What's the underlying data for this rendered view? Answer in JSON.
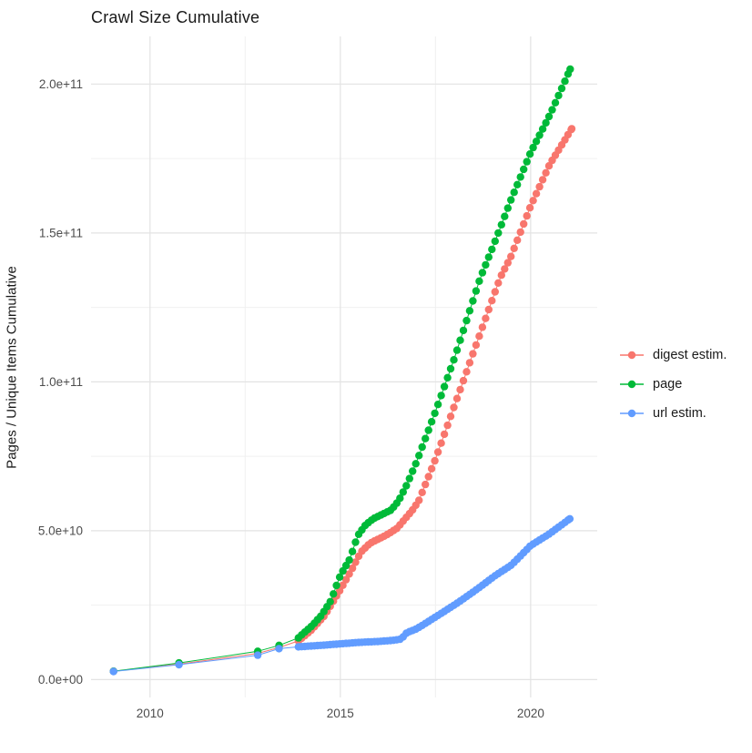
{
  "chart_data": {
    "type": "line",
    "title": "Crawl Size Cumulative",
    "xlabel": "",
    "ylabel": "Pages / Unique Items Cumulative",
    "legend_position": "right",
    "grid": true,
    "xlim": [
      2008.45,
      2021.75
    ],
    "ylim": [
      -6000000000.0,
      216000000000.0
    ],
    "x_ticks": [
      {
        "value": 2010,
        "label": "2010"
      },
      {
        "value": 2015,
        "label": "2015"
      },
      {
        "value": 2020,
        "label": "2020"
      }
    ],
    "x_minor": [
      2012.5,
      2017.5
    ],
    "y_ticks": [
      {
        "value": 0,
        "label": "0.0e+00"
      },
      {
        "value": 50000000000.0,
        "label": "5.0e+10"
      },
      {
        "value": 100000000000.0,
        "label": "1.0e+11"
      },
      {
        "value": 150000000000.0,
        "label": "1.5e+11"
      },
      {
        "value": 200000000000.0,
        "label": "2.0e+11"
      }
    ],
    "y_minor": [
      25000000000.0,
      75000000000.0,
      125000000000.0,
      175000000000.0
    ],
    "sampling_note": "crawls roughly monthly from late 2013 onward; sparse single crawls before",
    "dense_sampling": {
      "from": 2013.9,
      "step_years": 0.08333
    },
    "point_radius": 4.2,
    "series": [
      {
        "name": "digest estim.",
        "color": "#F8766D",
        "points": [
          [
            2009.04,
            2800000000.0
          ],
          [
            2010.76,
            5200000000.0
          ],
          [
            2012.83,
            8800000000.0
          ],
          [
            2013.39,
            10800000000.0
          ],
          [
            2013.9,
            13000000000.0
          ],
          [
            2014.22,
            16400000000.0
          ],
          [
            2014.58,
            21400000000.0
          ],
          [
            2015.02,
            30600000000.0
          ],
          [
            2015.3,
            37000000000.0
          ],
          [
            2015.54,
            42800000000.0
          ],
          [
            2015.78,
            45800000000.0
          ],
          [
            2016.02,
            47300000000.0
          ],
          [
            2016.26,
            48900000000.0
          ],
          [
            2016.5,
            50900000000.0
          ],
          [
            2016.7,
            54000000000.0
          ],
          [
            2016.9,
            57000000000.0
          ],
          [
            2017.06,
            60000000000.0
          ],
          [
            2017.5,
            74000000000.0
          ],
          [
            2018.0,
            92000000000.0
          ],
          [
            2018.5,
            110000000000.0
          ],
          [
            2019.2,
            135000000000.0
          ],
          [
            2019.48,
            142000000000.0
          ],
          [
            2020.0,
            159000000000.0
          ],
          [
            2020.5,
            173000000000.0
          ],
          [
            2021.08,
            185000000000.0
          ]
        ]
      },
      {
        "name": "page",
        "color": "#00BA38",
        "points": [
          [
            2009.04,
            2800000000.0
          ],
          [
            2010.76,
            5600000000.0
          ],
          [
            2012.83,
            9500000000.0
          ],
          [
            2013.39,
            11500000000.0
          ],
          [
            2013.9,
            14000000000.0
          ],
          [
            2014.0,
            15200000000.0
          ],
          [
            2014.25,
            18000000000.0
          ],
          [
            2014.5,
            21500000000.0
          ],
          [
            2014.75,
            26500000000.0
          ],
          [
            2015.0,
            35000000000.0
          ],
          [
            2015.25,
            40500000000.0
          ],
          [
            2015.46,
            48400000000.0
          ],
          [
            2015.66,
            51900000000.0
          ],
          [
            2015.86,
            54000000000.0
          ],
          [
            2016.1,
            55500000000.0
          ],
          [
            2016.34,
            57000000000.0
          ],
          [
            2016.53,
            60000000000.0
          ],
          [
            2016.75,
            65500000000.0
          ],
          [
            2017.0,
            73000000000.0
          ],
          [
            2017.5,
            90000000000.0
          ],
          [
            2018.0,
            108000000000.0
          ],
          [
            2018.68,
            135000000000.0
          ],
          [
            2019.0,
            145000000000.0
          ],
          [
            2019.48,
            161000000000.0
          ],
          [
            2020.0,
            177000000000.0
          ],
          [
            2020.52,
            190000000000.0
          ],
          [
            2021.04,
            205000000000.0
          ]
        ]
      },
      {
        "name": "url estim.",
        "color": "#619CFF",
        "points": [
          [
            2009.04,
            2700000000.0
          ],
          [
            2010.76,
            5000000000.0
          ],
          [
            2012.83,
            8200000000.0
          ],
          [
            2013.39,
            10400000000.0
          ],
          [
            2013.9,
            11000000000.0
          ],
          [
            2014.5,
            11500000000.0
          ],
          [
            2015.0,
            12000000000.0
          ],
          [
            2015.5,
            12500000000.0
          ],
          [
            2016.0,
            12800000000.0
          ],
          [
            2016.4,
            13200000000.0
          ],
          [
            2016.6,
            13600000000.0
          ],
          [
            2016.75,
            15800000000.0
          ],
          [
            2017.0,
            17000000000.0
          ],
          [
            2017.5,
            21000000000.0
          ],
          [
            2018.05,
            25500000000.0
          ],
          [
            2018.5,
            29500000000.0
          ],
          [
            2019.08,
            35000000000.0
          ],
          [
            2019.5,
            38500000000.0
          ],
          [
            2020.0,
            45000000000.0
          ],
          [
            2020.5,
            49000000000.0
          ],
          [
            2021.03,
            54000000000.0
          ]
        ]
      }
    ]
  }
}
